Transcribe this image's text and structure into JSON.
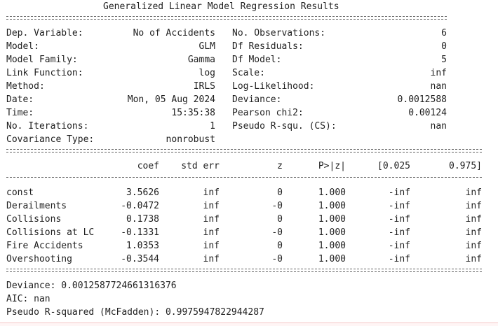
{
  "title": "Generalized Linear Model Regression Results",
  "summary_rows": [
    {
      "left_label": "Dep. Variable:",
      "left_value": "No of Accidents",
      "right_label": "No. Observations:",
      "right_value": "6"
    },
    {
      "left_label": "Model:",
      "left_value": "GLM",
      "right_label": "Df Residuals:",
      "right_value": "0"
    },
    {
      "left_label": "Model Family:",
      "left_value": "Gamma",
      "right_label": "Df Model:",
      "right_value": "5"
    },
    {
      "left_label": "Link Function:",
      "left_value": "log",
      "right_label": "Scale:",
      "right_value": "inf"
    },
    {
      "left_label": "Method:",
      "left_value": "IRLS",
      "right_label": "Log-Likelihood:",
      "right_value": "nan"
    },
    {
      "left_label": "Date:",
      "left_value": "Mon, 05 Aug 2024",
      "right_label": "Deviance:",
      "right_value": "0.0012588"
    },
    {
      "left_label": "Time:",
      "left_value": "15:35:38",
      "right_label": "Pearson chi2:",
      "right_value": "0.00124"
    },
    {
      "left_label": "No. Iterations:",
      "left_value": "1",
      "right_label": "Pseudo R-squ. (CS):",
      "right_value": "nan"
    },
    {
      "left_label": "Covariance Type:",
      "left_value": "nonrobust",
      "right_label": "",
      "right_value": ""
    }
  ],
  "coef_headers": [
    "coef",
    "std err",
    "z",
    "P>|z|",
    "[0.025",
    "0.975]"
  ],
  "coef_rows": [
    {
      "name": "const",
      "values": [
        "3.5626",
        "inf",
        "0",
        "1.000",
        "-inf",
        "inf"
      ]
    },
    {
      "name": "Derailments",
      "values": [
        "-0.0472",
        "inf",
        "-0",
        "1.000",
        "-inf",
        "inf"
      ]
    },
    {
      "name": "Collisions",
      "values": [
        "0.1738",
        "inf",
        "0",
        "1.000",
        "-inf",
        "inf"
      ]
    },
    {
      "name": "Collisions at LC",
      "values": [
        "-0.1331",
        "inf",
        "-0",
        "1.000",
        "-inf",
        "inf"
      ]
    },
    {
      "name": "Fire Accidents",
      "values": [
        "1.0353",
        "inf",
        "0",
        "1.000",
        "-inf",
        "inf"
      ]
    },
    {
      "name": "Overshooting",
      "values": [
        "-0.3544",
        "inf",
        "-0",
        "1.000",
        "-inf",
        "inf"
      ]
    }
  ],
  "footer_lines": [
    "Deviance: 0.0012587724661316376",
    "AIC: nan",
    "Pseudo R-squared (McFadden): 0.9975947822944287"
  ]
}
